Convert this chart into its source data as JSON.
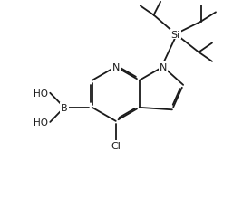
{
  "background": "#ffffff",
  "line_color": "#1a1a1a",
  "line_width": 1.3,
  "font_size": 8.0,
  "fig_width": 2.78,
  "fig_height": 2.3,
  "dpi": 100,
  "xlim": [
    0,
    10
  ],
  "ylim": [
    0,
    8.52
  ]
}
